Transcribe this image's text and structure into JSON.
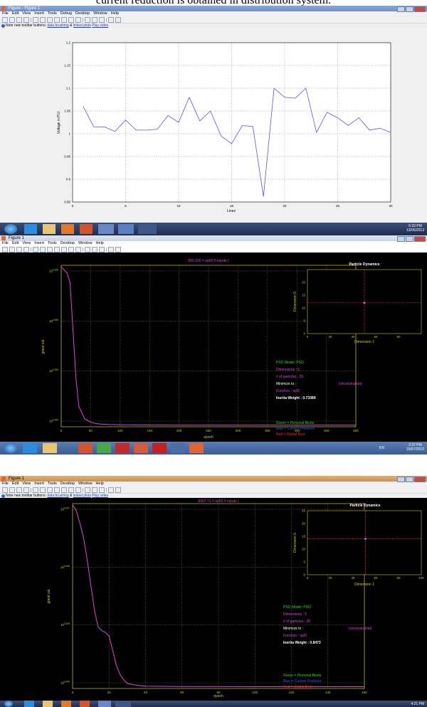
{
  "header_text": "current reduction is obtained in distribution system.",
  "window1": {
    "title": "Figure - Figure 1",
    "menu": [
      "File",
      "Edit",
      "View",
      "Insert",
      "Tools",
      "Debug",
      "Desktop",
      "Window",
      "Help"
    ],
    "note_prefix": "Note new toolbar buttons:",
    "note_link1": "data brushing",
    "note_and": "&",
    "note_link2": "linked plots",
    "note_link3": "Play video"
  },
  "chart1": {
    "type": "line",
    "xlabel": "Lines",
    "ylabel": "Voltage in P.U.",
    "xlim": [
      0,
      30
    ],
    "ylim": [
      0.85,
      1.2
    ],
    "xticks": [
      "0",
      "5",
      "10",
      "15",
      "20",
      "25",
      "30"
    ],
    "yticks": [
      "0.85",
      "0.9",
      "0.95",
      "1",
      "1.05",
      "1.1",
      "1.15",
      "1.2"
    ],
    "grid": true,
    "color": "#5555ff",
    "x": [
      1,
      2,
      3,
      4,
      5,
      6,
      7,
      8,
      9,
      10,
      11,
      12,
      13,
      14,
      15,
      16,
      17,
      18,
      19,
      20,
      21,
      22,
      23,
      24,
      25,
      26,
      27,
      28,
      29,
      30
    ],
    "y": [
      1.06,
      1.015,
      1.015,
      1.005,
      1.03,
      1.008,
      1.008,
      1.01,
      1.04,
      1.025,
      1.08,
      1.028,
      1.05,
      0.995,
      0.978,
      1.018,
      1.016,
      0.862,
      1.1,
      1.08,
      1.078,
      1.1,
      1.003,
      1.047,
      1.035,
      1.018,
      1.035,
      1.008,
      1.012,
      1.003
    ]
  },
  "taskbar1": {
    "time": "6:33 PM",
    "date": "13/06/2013"
  },
  "window2": {
    "title": "Figure 1",
    "menu": [
      "File",
      "Edit",
      "View",
      "Insert",
      "Tools",
      "Desktop",
      "Window",
      "Help"
    ]
  },
  "chart2": {
    "type": "line",
    "title": "816.155 = opf2( 5 inputs )",
    "xlabel": "epoch",
    "ylabel": "gbest val.",
    "xlim": [
      0,
      500
    ],
    "xticks": [
      "0",
      "50",
      "100",
      "150",
      "200",
      "250",
      "300",
      "350",
      "400",
      "450",
      "500"
    ],
    "yticks": [
      "10^2.905",
      "10^2.955",
      "10^2.954",
      "10^2.953"
    ],
    "grid": true,
    "color": "#e040e0",
    "x": [
      0,
      5,
      10,
      15,
      20,
      25,
      30,
      40,
      50,
      60,
      80,
      100,
      150,
      200,
      300,
      400,
      500
    ],
    "y": [
      1.0,
      0.98,
      0.96,
      0.9,
      0.6,
      0.3,
      0.12,
      0.04,
      0.02,
      0.01,
      0.005,
      0.003,
      0.002,
      0.001,
      0.001,
      0.001,
      0.001
    ]
  },
  "particles2": {
    "type": "scatter",
    "title": "Particle Dynamics",
    "xlabel": "Dimension 1",
    "ylabel": "Dimension 5",
    "xlim": [
      0,
      100
    ],
    "ylim": [
      0,
      25
    ],
    "xticks": [
      "0",
      "20",
      "40",
      "60",
      "80"
    ],
    "yticks": [
      "0",
      "5",
      "10",
      "15",
      "20"
    ],
    "crosshair": [
      50,
      12
    ],
    "points": [
      [
        50,
        12
      ]
    ]
  },
  "legend2": {
    "model": "PSO Model:  PSO",
    "dimensions": "Dimensions :  5",
    "particles": "# of particles :  20",
    "minimize_label": "Minimize to :",
    "minimize_value": "Unconstrained",
    "function": "Function :  opf2",
    "inertia": "Inertia Weight :  0.73389",
    "green": "Green = Personal Bests",
    "blue": "Blue = Current Positions",
    "red": "Red   = Global Best"
  },
  "taskbar2": {
    "lang": "EN",
    "time": "2:37 PM",
    "date": "15/07/2013"
  },
  "window3": {
    "title": "Figure 1",
    "menu": [
      "File",
      "Edit",
      "View",
      "Insert",
      "Tools",
      "Desktop",
      "Window",
      "Help"
    ],
    "note_prefix": "Note new toolbar buttons:",
    "note_link1": "data brushing",
    "note_and": "&",
    "note_link2": "linked plots",
    "note_link3": "Play video"
  },
  "chart3": {
    "type": "line",
    "title": "5567.71 = opf2( 5 inputs )",
    "xlabel": "epoch",
    "ylabel": "gbest val.",
    "xlim": [
      0,
      160
    ],
    "xticks": [
      "0",
      "20",
      "40",
      "60",
      "80",
      "100",
      "120",
      "140",
      "160"
    ],
    "yticks": [
      "10^3.007",
      "10^3.006",
      "10^3.005",
      "10^3.004"
    ],
    "grid": true,
    "color": "#e040e0",
    "x": [
      0,
      2,
      4,
      6,
      8,
      10,
      12,
      14,
      16,
      18,
      20,
      22,
      24,
      26,
      28,
      30,
      35,
      40,
      60,
      80,
      100,
      120,
      140,
      160
    ],
    "y": [
      1.0,
      0.97,
      0.9,
      0.82,
      0.7,
      0.56,
      0.42,
      0.33,
      0.31,
      0.3,
      0.28,
      0.2,
      0.12,
      0.07,
      0.04,
      0.02,
      0.01,
      0.005,
      0.003,
      0.003,
      0.002,
      0.002,
      0.002,
      0.002
    ]
  },
  "particles3": {
    "type": "scatter",
    "title": "Particle Dynamics",
    "xlabel": "Dimension 1",
    "ylabel": "Dimension 5",
    "xlim": [
      0,
      100
    ],
    "ylim": [
      0,
      25
    ],
    "xticks": [
      "0",
      "20",
      "40",
      "60",
      "80",
      "100"
    ],
    "yticks": [
      "0",
      "5",
      "10",
      "15",
      "20",
      "25"
    ],
    "crosshair": [
      51,
      14
    ],
    "points": [
      [
        51,
        14
      ]
    ]
  },
  "legend3": {
    "model": "PSO Model:  PSO",
    "dimensions": "Dimensions :  5",
    "particles": "# of particles :  20",
    "minimize_label": "Minimize to :",
    "minimize_value": "Unconstrained",
    "function": "Function :  opf2",
    "inertia": "Inertia Weight :  0.8473",
    "green": "Green = Personal Bests",
    "blue": "Blue = Current Positions",
    "red": "Red   = Global Best"
  },
  "taskbar3": {
    "time": "4:21 PM"
  }
}
